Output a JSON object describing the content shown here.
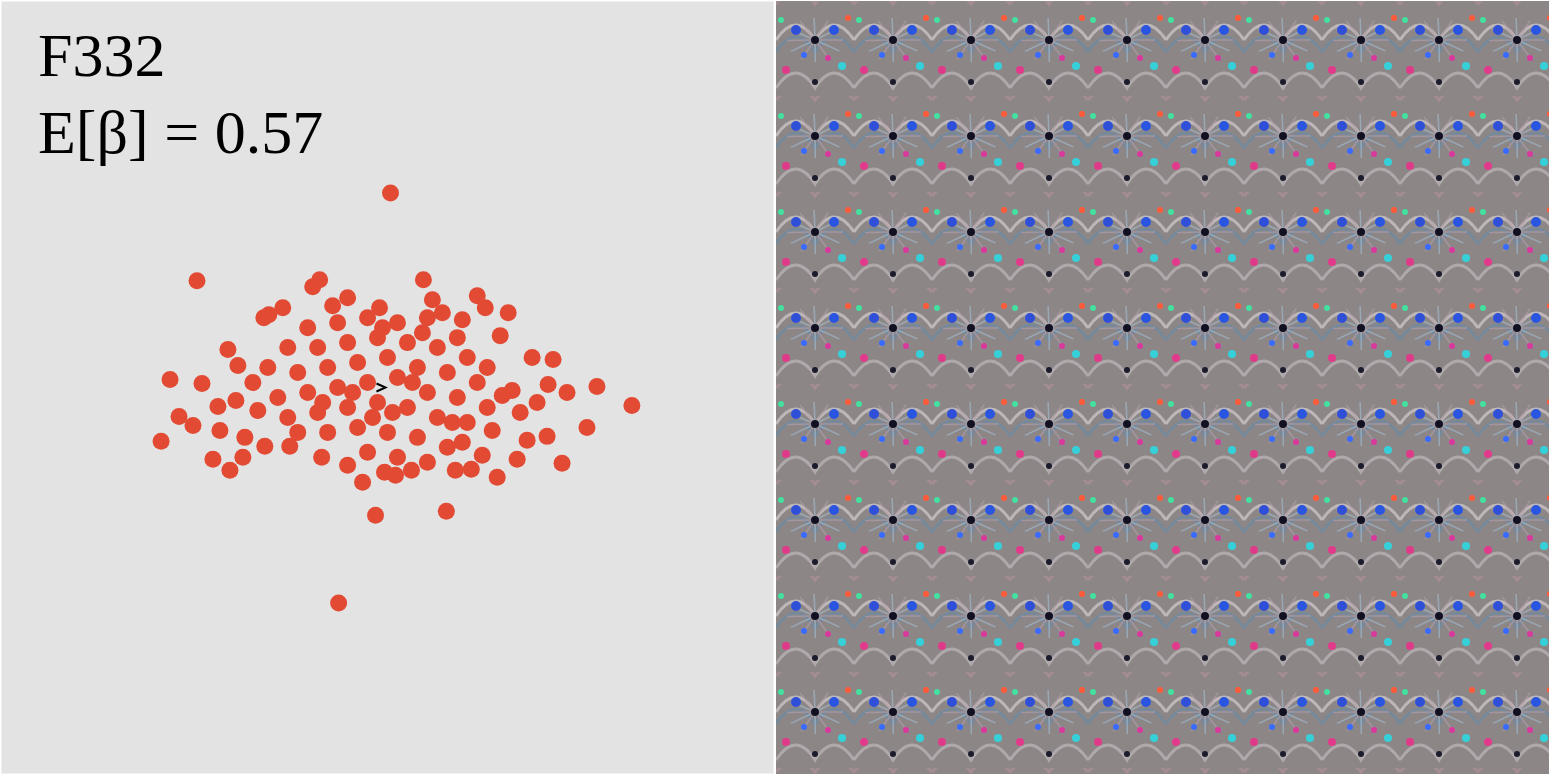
{
  "chart_data": {
    "type": "scatter",
    "title": "F332",
    "annotation": "E[β] = 0.57",
    "x": [
      0.3,
      -19.1,
      -6.8,
      -7.5,
      -12.4,
      -11.9,
      -21.8,
      -22.7,
      -20.9,
      -17.5,
      -15.8,
      21.0,
      24.5,
      17.5,
      16.0,
      -1.2,
      5.9,
      -4.9,
      3.6,
      9.8,
      12.1,
      14.5,
      16.6,
      16.1,
      9.5,
      8.4,
      6.8,
      -0.3,
      2.4,
      -6.6,
      -9.8,
      -12.3,
      -14.3,
      -16.8,
      -18.6,
      -15.0,
      -15.2,
      -13.0,
      -4.0,
      -0.8,
      4.5,
      7.5,
      11.3,
      12.5,
      13.3,
      14.0,
      10.5,
      7.5,
      -8,
      -5,
      -2,
      1,
      4,
      7,
      -10,
      -7,
      -4,
      -1,
      2,
      5,
      8,
      10,
      -12,
      -9,
      -6,
      -3,
      0,
      3,
      6,
      9,
      -11,
      -8,
      -5,
      -2,
      1,
      4,
      7,
      10,
      -10,
      -7,
      -4,
      -1,
      2,
      5,
      8,
      -6,
      -3,
      0,
      3,
      6,
      -2,
      1,
      4,
      -4,
      -1.5,
      0.5,
      2.5,
      -3.5,
      -6.5,
      3.5,
      -0.5,
      6.5,
      -9,
      11.5,
      -13.5,
      5.5,
      -5.5,
      0.8,
      -17,
      -19.5,
      -14.5,
      15,
      18,
      13,
      11,
      -2.5,
      -10.5,
      9,
      -16,
      20
    ],
    "values": [
      19.5,
      10.7,
      10.8,
      10.1,
      7.0,
      7.3,
      0.8,
      -5.4,
      -2.9,
      -7.2,
      -8.3,
      0.1,
      -1.8,
      -7.6,
      -4.9,
      -12.8,
      -12.4,
      -21.6,
      10.8,
      8.0,
      7.5,
      3.0,
      2.8,
      0.3,
      -6.8,
      -8.2,
      -8.3,
      -8.5,
      -8.3,
      -7.0,
      -5.9,
      -5.9,
      -5.0,
      -4.3,
      0.4,
      2.2,
      -1.3,
      -2.3,
      9.0,
      8.0,
      8.8,
      6.8,
      5.2,
      -0.3,
      -2.5,
      -5.3,
      -4.3,
      -5.5,
      6,
      6.5,
      7,
      6.5,
      7,
      5,
      4,
      4,
      4.5,
      5,
      4.5,
      4,
      3,
      2,
      2,
      1.5,
      2,
      2.5,
      3,
      2,
      1.5,
      0.5,
      -1,
      -0.5,
      0,
      0.5,
      1,
      -0.5,
      -1,
      -2,
      -3,
      -2.5,
      -2,
      -1.5,
      -2,
      -3,
      -3.5,
      -4.5,
      -4,
      -4.5,
      -5,
      -6,
      -6.5,
      -7,
      -7.5,
      -7.8,
      -3,
      -2.5,
      0.5,
      -0.5,
      -1.5,
      5.5,
      6,
      -3.5,
      -4.5,
      -0.8,
      0.5,
      7.5,
      8.2,
      -8.8,
      -1.9,
      -3.8,
      -7,
      -1.5,
      -0.5,
      -7.2,
      -9,
      -9.5,
      8,
      9.2,
      3.8,
      -4
    ],
    "xlim": [
      -38.75,
      38.75
    ],
    "ylim": [
      -38.75,
      38.75
    ],
    "color": "#e24a33",
    "marker": "circle",
    "tick_labels": false
  }
}
